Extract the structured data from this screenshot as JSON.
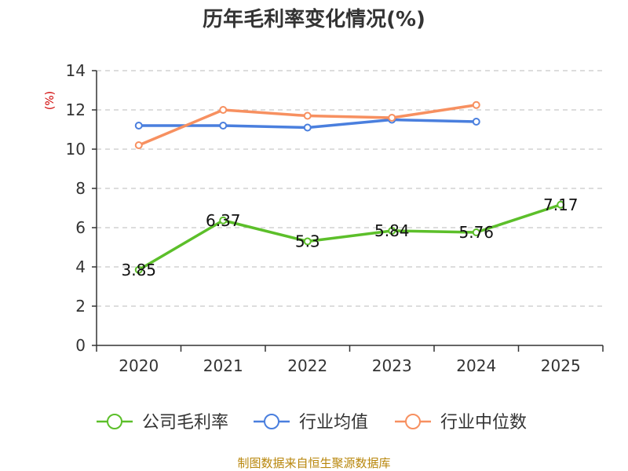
{
  "chart_data": {
    "type": "line",
    "title": "历年毛利率变化情况(%)",
    "ylabel": "(%)",
    "xlabel": "",
    "ylim": [
      0,
      14
    ],
    "yticks": [
      0,
      2,
      4,
      6,
      8,
      10,
      12,
      14
    ],
    "categories": [
      "2020",
      "2021",
      "2022",
      "2023",
      "2024",
      "2025"
    ],
    "grid": true,
    "legend_position": "bottom",
    "series": [
      {
        "name": "公司毛利率",
        "color": "#5cbf2a",
        "values": [
          3.85,
          6.37,
          5.3,
          5.84,
          5.76,
          7.17
        ],
        "labels": [
          "3.85",
          "6.37",
          "5.3",
          "5.84",
          "5.76",
          "7.17"
        ]
      },
      {
        "name": "行业均值",
        "color": "#4a7fde",
        "values": [
          11.2,
          11.2,
          11.1,
          11.5,
          11.4,
          null
        ]
      },
      {
        "name": "行业中位数",
        "color": "#f79060",
        "values": [
          10.2,
          12.0,
          11.7,
          11.6,
          12.25,
          null
        ]
      }
    ]
  },
  "footer": {
    "source": "制图数据来自恒生聚源数据库"
  }
}
